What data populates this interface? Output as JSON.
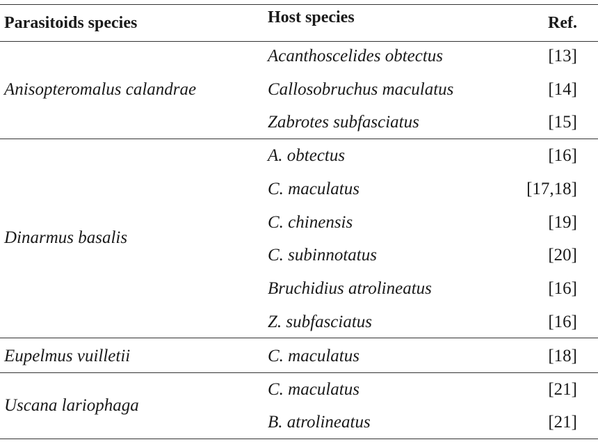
{
  "table": {
    "headers": {
      "parasitoid": "Parasitoids species",
      "host": "Host species",
      "ref": "Ref."
    },
    "groups": [
      {
        "parasitoid": "Anisopteromalus calandrae",
        "rows": [
          {
            "host": "Acanthoscelides obtectus",
            "ref": "[13]"
          },
          {
            "host": "Callosobruchus maculatus",
            "ref": "[14]"
          },
          {
            "host": "Zabrotes subfasciatus",
            "ref": "[15]"
          }
        ]
      },
      {
        "parasitoid": "Dinarmus basalis",
        "rows": [
          {
            "host": "A. obtectus",
            "ref": "[16]"
          },
          {
            "host": "C. maculatus",
            "ref": "[17,18]"
          },
          {
            "host": "C. chinensis",
            "ref": "[19]"
          },
          {
            "host": "C. subinnotatus",
            "ref": "[20]"
          },
          {
            "host": "Bruchidius atrolineatus",
            "ref": "[16]"
          },
          {
            "host": "Z. subfasciatus",
            "ref": "[16]"
          }
        ]
      },
      {
        "parasitoid": "Eupelmus vuilletii",
        "rows": [
          {
            "host": "C. maculatus",
            "ref": "[18]"
          }
        ]
      },
      {
        "parasitoid": "Uscana lariophaga",
        "rows": [
          {
            "host": "C. maculatus",
            "ref": "[21]"
          },
          {
            "host": "B. atrolineatus",
            "ref": "[21]"
          }
        ]
      }
    ]
  }
}
